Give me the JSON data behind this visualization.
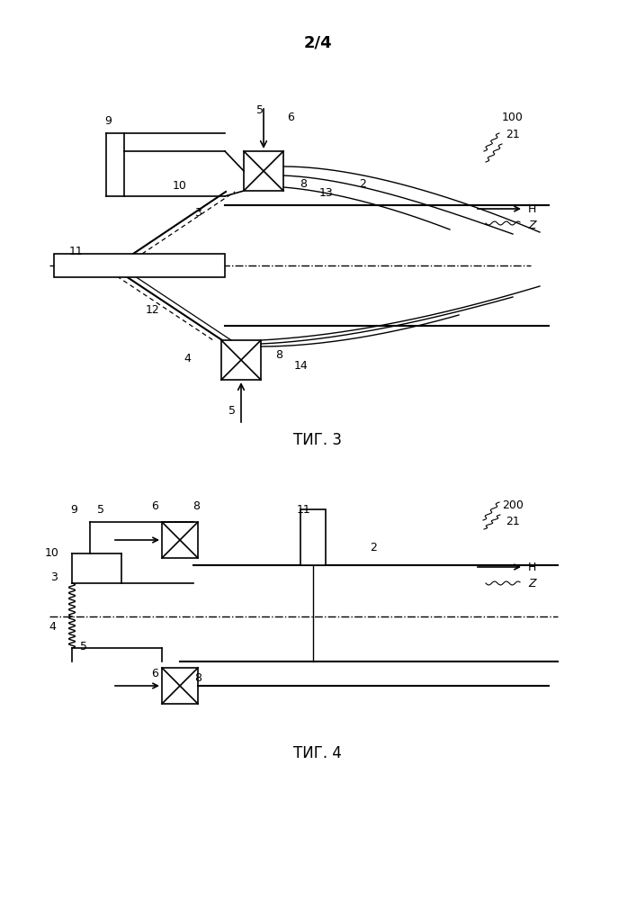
{
  "page_label": "2/4",
  "fig3_label": "ΤИГ. 3",
  "fig4_label": "ΤИГ. 4",
  "bg_color": "#ffffff",
  "line_color": "#000000",
  "lw": 1.2
}
